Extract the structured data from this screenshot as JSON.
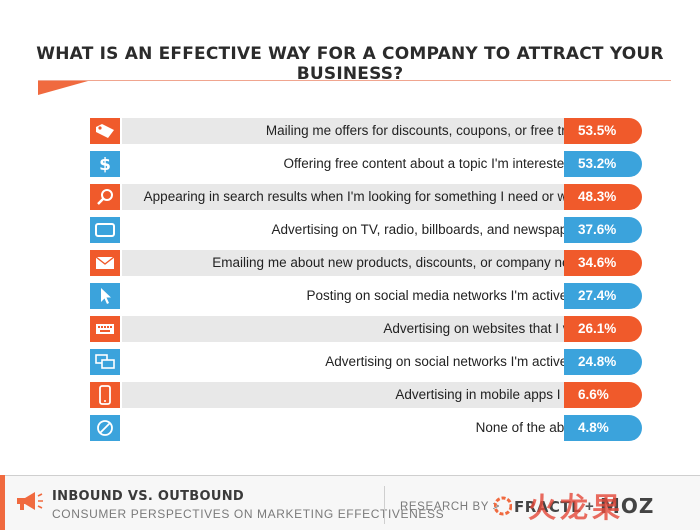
{
  "chart_data": {
    "type": "bar",
    "title": "WHAT IS AN EFFECTIVE WAY FOR A COMPANY TO ATTRACT YOUR BUSINESS?",
    "unit": "%",
    "items": [
      {
        "label": "Mailing me offers for discounts, coupons, or free trials",
        "value": 53.5,
        "display": "53.5%",
        "icon": "price-tag-icon",
        "color": "#f05a2b"
      },
      {
        "label": "Offering free content about a topic I'm interested in",
        "value": 53.2,
        "display": "53.2%",
        "icon": "dollar-icon",
        "color": "#3ba3dc"
      },
      {
        "label": "Appearing in search results when I'm looking for something I need or want",
        "value": 48.3,
        "display": "48.3%",
        "icon": "magnifier-icon",
        "color": "#f05a2b"
      },
      {
        "label": "Advertising on TV, radio, billboards, and newspapers",
        "value": 37.6,
        "display": "37.6%",
        "icon": "tv-icon",
        "color": "#3ba3dc"
      },
      {
        "label": "Emailing me about new products, discounts, or company news",
        "value": 34.6,
        "display": "34.6%",
        "icon": "envelope-icon",
        "color": "#f05a2b"
      },
      {
        "label": "Posting on social media networks I'm active on",
        "value": 27.4,
        "display": "27.4%",
        "icon": "cursor-icon",
        "color": "#3ba3dc"
      },
      {
        "label": "Advertising on websites that I visit",
        "value": 26.1,
        "display": "26.1%",
        "icon": "keyboard-icon",
        "color": "#f05a2b"
      },
      {
        "label": "Advertising on social networks I'm active on",
        "value": 24.8,
        "display": "24.8%",
        "icon": "chat-bubbles-icon",
        "color": "#3ba3dc"
      },
      {
        "label": "Advertising in mobile apps I use",
        "value": 6.6,
        "display": "6.6%",
        "icon": "smartphone-icon",
        "color": "#f05a2b"
      },
      {
        "label": "None of the above",
        "value": 4.8,
        "display": "4.8%",
        "icon": "prohibited-icon",
        "color": "#3ba3dc"
      }
    ]
  },
  "footer": {
    "title": "INBOUND VS. OUTBOUND",
    "subtitle": "CONSUMER PERSPECTIVES ON MARKETING EFFECTIVENESS",
    "research_by": "RESEARCH BY >",
    "brand1": "FRACTL",
    "plus": "+",
    "brand2": "MOZ",
    "watermark": "火龙果"
  }
}
